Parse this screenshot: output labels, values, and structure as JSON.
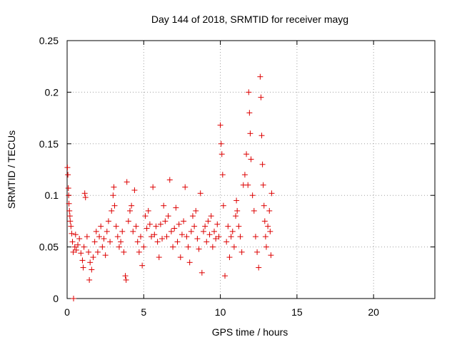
{
  "chart_data": {
    "type": "scatter",
    "title": "Day 144 of 2018, SRMTID for receiver mayg",
    "xlabel": "GPS time / hours",
    "ylabel": "SRMTID / TECUs",
    "xlim": [
      0,
      24
    ],
    "ylim": [
      0,
      0.25
    ],
    "xticks": [
      0,
      5,
      10,
      15,
      20
    ],
    "xtick_labels": [
      "0",
      "5",
      "10",
      "15",
      "20"
    ],
    "yticks": [
      0,
      0.05,
      0.1,
      0.15,
      0.2,
      0.25
    ],
    "ytick_labels": [
      "0",
      "0.05",
      "0.1",
      "0.15",
      "0.2",
      "0.25"
    ],
    "grid": true,
    "marker": "plus",
    "color": "#dd0000",
    "series": [
      {
        "name": "SRMTID",
        "points": [
          [
            0.02,
            0.127
          ],
          [
            0.05,
            0.12
          ],
          [
            0.08,
            0.107
          ],
          [
            0.1,
            0.1
          ],
          [
            0.12,
            0.092
          ],
          [
            0.15,
            0.085
          ],
          [
            0.18,
            0.08
          ],
          [
            0.2,
            0.075
          ],
          [
            0.25,
            0.07
          ],
          [
            0.3,
            0.063
          ],
          [
            0.35,
            0.055
          ],
          [
            0.4,
            0.045
          ],
          [
            0.42,
            0.0
          ],
          [
            0.5,
            0.05
          ],
          [
            0.55,
            0.062
          ],
          [
            0.6,
            0.047
          ],
          [
            0.7,
            0.052
          ],
          [
            0.8,
            0.058
          ],
          [
            0.9,
            0.044
          ],
          [
            1.0,
            0.037
          ],
          [
            1.05,
            0.03
          ],
          [
            1.1,
            0.05
          ],
          [
            1.15,
            0.102
          ],
          [
            1.2,
            0.098
          ],
          [
            1.3,
            0.06
          ],
          [
            1.4,
            0.045
          ],
          [
            1.45,
            0.018
          ],
          [
            1.5,
            0.035
          ],
          [
            1.6,
            0.028
          ],
          [
            1.7,
            0.04
          ],
          [
            1.8,
            0.055
          ],
          [
            1.9,
            0.065
          ],
          [
            2.0,
            0.045
          ],
          [
            2.1,
            0.06
          ],
          [
            2.2,
            0.07
          ],
          [
            2.3,
            0.05
          ],
          [
            2.4,
            0.058
          ],
          [
            2.5,
            0.042
          ],
          [
            2.6,
            0.065
          ],
          [
            2.7,
            0.075
          ],
          [
            2.8,
            0.055
          ],
          [
            2.9,
            0.085
          ],
          [
            3.0,
            0.1
          ],
          [
            3.05,
            0.108
          ],
          [
            3.1,
            0.09
          ],
          [
            3.2,
            0.07
          ],
          [
            3.3,
            0.06
          ],
          [
            3.4,
            0.05
          ],
          [
            3.5,
            0.055
          ],
          [
            3.6,
            0.065
          ],
          [
            3.7,
            0.045
          ],
          [
            3.8,
            0.022
          ],
          [
            3.85,
            0.018
          ],
          [
            3.9,
            0.113
          ],
          [
            4.0,
            0.075
          ],
          [
            4.1,
            0.085
          ],
          [
            4.2,
            0.09
          ],
          [
            4.3,
            0.065
          ],
          [
            4.4,
            0.105
          ],
          [
            4.5,
            0.07
          ],
          [
            4.6,
            0.055
          ],
          [
            4.7,
            0.045
          ],
          [
            4.8,
            0.06
          ],
          [
            4.9,
            0.032
          ],
          [
            5.0,
            0.05
          ],
          [
            5.1,
            0.08
          ],
          [
            5.2,
            0.068
          ],
          [
            5.3,
            0.085
          ],
          [
            5.4,
            0.072
          ],
          [
            5.5,
            0.06
          ],
          [
            5.6,
            0.108
          ],
          [
            5.7,
            0.062
          ],
          [
            5.8,
            0.07
          ],
          [
            5.9,
            0.055
          ],
          [
            6.0,
            0.04
          ],
          [
            6.1,
            0.072
          ],
          [
            6.2,
            0.058
          ],
          [
            6.3,
            0.09
          ],
          [
            6.4,
            0.075
          ],
          [
            6.5,
            0.06
          ],
          [
            6.6,
            0.08
          ],
          [
            6.7,
            0.115
          ],
          [
            6.8,
            0.065
          ],
          [
            6.9,
            0.05
          ],
          [
            7.0,
            0.068
          ],
          [
            7.1,
            0.088
          ],
          [
            7.2,
            0.055
          ],
          [
            7.3,
            0.072
          ],
          [
            7.4,
            0.04
          ],
          [
            7.5,
            0.062
          ],
          [
            7.6,
            0.075
          ],
          [
            7.7,
            0.108
          ],
          [
            7.8,
            0.06
          ],
          [
            7.9,
            0.05
          ],
          [
            8.0,
            0.035
          ],
          [
            8.1,
            0.065
          ],
          [
            8.2,
            0.08
          ],
          [
            8.3,
            0.07
          ],
          [
            8.4,
            0.085
          ],
          [
            8.5,
            0.058
          ],
          [
            8.6,
            0.048
          ],
          [
            8.7,
            0.102
          ],
          [
            8.8,
            0.025
          ],
          [
            8.9,
            0.065
          ],
          [
            9.0,
            0.07
          ],
          [
            9.1,
            0.055
          ],
          [
            9.2,
            0.075
          ],
          [
            9.3,
            0.062
          ],
          [
            9.4,
            0.08
          ],
          [
            9.5,
            0.05
          ],
          [
            9.6,
            0.065
          ],
          [
            9.7,
            0.058
          ],
          [
            9.8,
            0.072
          ],
          [
            9.9,
            0.06
          ],
          [
            10.0,
            0.168
          ],
          [
            10.05,
            0.15
          ],
          [
            10.1,
            0.14
          ],
          [
            10.15,
            0.12
          ],
          [
            10.2,
            0.09
          ],
          [
            10.3,
            0.022
          ],
          [
            10.4,
            0.055
          ],
          [
            10.5,
            0.07
          ],
          [
            10.6,
            0.04
          ],
          [
            10.7,
            0.06
          ],
          [
            10.8,
            0.065
          ],
          [
            10.9,
            0.05
          ],
          [
            11.0,
            0.08
          ],
          [
            11.05,
            0.095
          ],
          [
            11.1,
            0.085
          ],
          [
            11.2,
            0.07
          ],
          [
            11.3,
            0.06
          ],
          [
            11.4,
            0.045
          ],
          [
            11.5,
            0.11
          ],
          [
            11.6,
            0.12
          ],
          [
            11.7,
            0.14
          ],
          [
            11.8,
            0.11
          ],
          [
            11.85,
            0.2
          ],
          [
            11.9,
            0.18
          ],
          [
            11.95,
            0.16
          ],
          [
            12.0,
            0.135
          ],
          [
            12.1,
            0.1
          ],
          [
            12.2,
            0.085
          ],
          [
            12.3,
            0.06
          ],
          [
            12.4,
            0.045
          ],
          [
            12.5,
            0.03
          ],
          [
            12.6,
            0.215
          ],
          [
            12.65,
            0.195
          ],
          [
            12.7,
            0.158
          ],
          [
            12.75,
            0.13
          ],
          [
            12.8,
            0.11
          ],
          [
            12.85,
            0.09
          ],
          [
            12.9,
            0.075
          ],
          [
            12.95,
            0.06
          ],
          [
            13.0,
            0.05
          ],
          [
            13.1,
            0.07
          ],
          [
            13.2,
            0.085
          ],
          [
            13.25,
            0.065
          ],
          [
            13.3,
            0.042
          ],
          [
            13.35,
            0.102
          ]
        ]
      }
    ]
  }
}
